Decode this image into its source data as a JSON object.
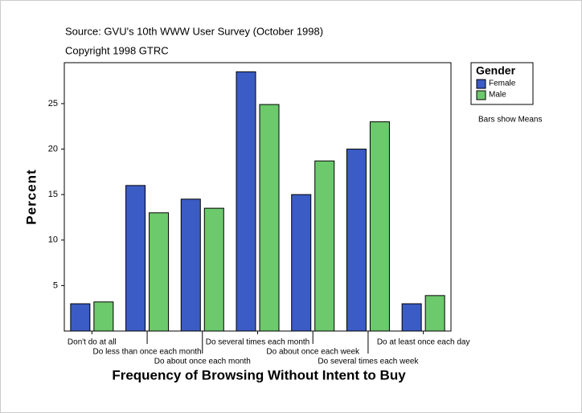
{
  "chart_data": {
    "type": "bar",
    "title": "Source: GVU's 10th WWW User Survey (October 1998)",
    "subtitle": "Copyright 1998 GTRC",
    "x_label": "Frequency of Browsing Without Intent to Buy",
    "y_label": "Percent",
    "legend_title": "Gender",
    "annotation": "Bars show Means",
    "categories": [
      "Don't do at all",
      "Do less than once each month",
      "Do about once each month",
      "Do several times each month",
      "Do about once each week",
      "Do several times each week",
      "Do at least once each day"
    ],
    "series": [
      {
        "name": "Female",
        "color": "#3a5cc4",
        "values": [
          3.0,
          16.0,
          14.5,
          28.5,
          15.0,
          20.0,
          3.0
        ]
      },
      {
        "name": "Male",
        "color": "#6cc96c",
        "values": [
          3.2,
          13.0,
          13.5,
          24.9,
          18.7,
          23.0,
          3.9
        ]
      }
    ],
    "ylim": [
      0,
      29.5
    ],
    "yticks": [
      5,
      10,
      15,
      20,
      25
    ]
  }
}
